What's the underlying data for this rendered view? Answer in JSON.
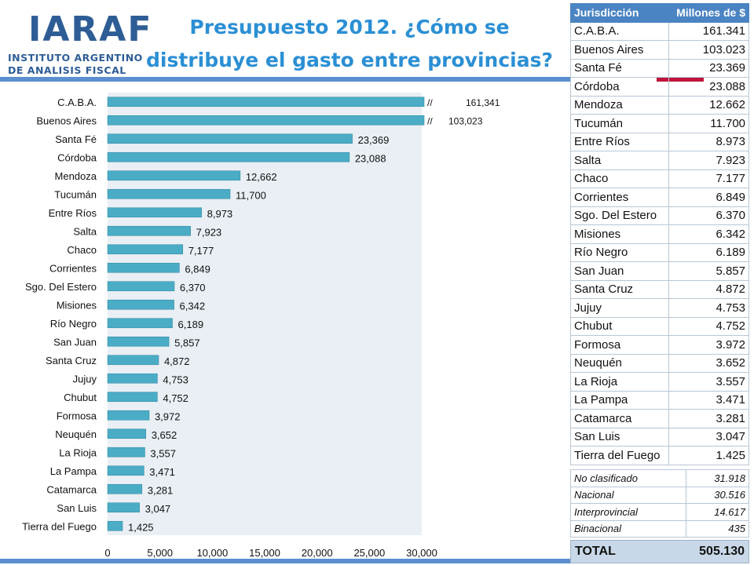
{
  "logo": {
    "name": "IARAF",
    "line1": "INSTITUTO ARGENTINO",
    "line2": "DE ANALISIS FISCAL"
  },
  "title": {
    "line1": "Presupuesto 2012. ¿Cómo se",
    "line2": "distribuye el gasto entre provincias?"
  },
  "colors": {
    "bar": "#4bacc6",
    "plot_bg": "#e9eff4",
    "title": "#2b8fd4",
    "table_header": "#4a84c2",
    "stripe_blue": "#5b8fd0",
    "stripe_red": "#c0143c"
  },
  "chart_data": {
    "type": "bar",
    "orientation": "horizontal",
    "categories": [
      "C.A.B.A.",
      "Buenos Aires",
      "Santa Fé",
      "Córdoba",
      "Mendoza",
      "Tucumán",
      "Entre Ríos",
      "Salta",
      "Chaco",
      "Corrientes",
      "Sgo. Del Estero",
      "Misiones",
      "Río Negro",
      "San Juan",
      "Santa Cruz",
      "Jujuy",
      "Chubut",
      "Formosa",
      "Neuquén",
      "La Rioja",
      "La Pampa",
      "Catamarca",
      "San Luis",
      "Tierra del Fuego"
    ],
    "values": [
      161341,
      103023,
      23369,
      23088,
      12662,
      11700,
      8973,
      7923,
      7177,
      6849,
      6370,
      6342,
      6189,
      5857,
      4872,
      4753,
      4752,
      3972,
      3652,
      3557,
      3471,
      3281,
      3047,
      1425
    ],
    "data_labels": [
      "161,341",
      "103,023",
      "23,369",
      "23,088",
      "12,662",
      "11,700",
      "8,973",
      "7,923",
      "7,177",
      "6,849",
      "6,370",
      "6,342",
      "6,189",
      "5,857",
      "4,872",
      "4,753",
      "4,752",
      "3,972",
      "3,652",
      "3,557",
      "3,471",
      "3,281",
      "3,047",
      "1,425"
    ],
    "truncated": [
      true,
      true,
      false,
      false,
      false,
      false,
      false,
      false,
      false,
      false,
      false,
      false,
      false,
      false,
      false,
      false,
      false,
      false,
      false,
      false,
      false,
      false,
      false,
      false
    ],
    "break_mark": "//",
    "xlim": [
      0,
      30000
    ],
    "xticks": [
      0,
      5000,
      10000,
      15000,
      20000,
      25000,
      30000
    ],
    "xtick_labels": [
      "0",
      "5,000",
      "10,000",
      "15,000",
      "20,000",
      "25,000",
      "30,000"
    ],
    "grid": false,
    "legend": "none"
  },
  "table": {
    "headers": [
      "Jurisdicción",
      "Millones de $"
    ],
    "rows": [
      [
        "C.A.B.A.",
        "161.341"
      ],
      [
        "Buenos Aires",
        "103.023"
      ],
      [
        "Santa Fé",
        "23.369"
      ],
      [
        "Córdoba",
        "23.088"
      ],
      [
        "Mendoza",
        "12.662"
      ],
      [
        "Tucumán",
        "11.700"
      ],
      [
        "Entre Ríos",
        "8.973"
      ],
      [
        "Salta",
        "7.923"
      ],
      [
        "Chaco",
        "7.177"
      ],
      [
        "Corrientes",
        "6.849"
      ],
      [
        "Sgo. Del Estero",
        "6.370"
      ],
      [
        "Misiones",
        "6.342"
      ],
      [
        "Río Negro",
        "6.189"
      ],
      [
        "San Juan",
        "5.857"
      ],
      [
        "Santa Cruz",
        "4.872"
      ],
      [
        "Jujuy",
        "4.753"
      ],
      [
        "Chubut",
        "4.752"
      ],
      [
        "Formosa",
        "3.972"
      ],
      [
        "Neuquén",
        "3.652"
      ],
      [
        "La Rioja",
        "3.557"
      ],
      [
        "La Pampa",
        "3.471"
      ],
      [
        "Catamarca",
        "3.281"
      ],
      [
        "San Luis",
        "3.047"
      ],
      [
        "Tierra del Fuego",
        "1.425"
      ]
    ],
    "extra_rows": [
      [
        "No clasificado",
        "31.918"
      ],
      [
        "Nacional",
        "30.516"
      ],
      [
        "Interprovincial",
        "14.617"
      ],
      [
        "Binacional",
        "435"
      ]
    ],
    "total": {
      "label": "TOTAL",
      "value": "505.130"
    }
  }
}
